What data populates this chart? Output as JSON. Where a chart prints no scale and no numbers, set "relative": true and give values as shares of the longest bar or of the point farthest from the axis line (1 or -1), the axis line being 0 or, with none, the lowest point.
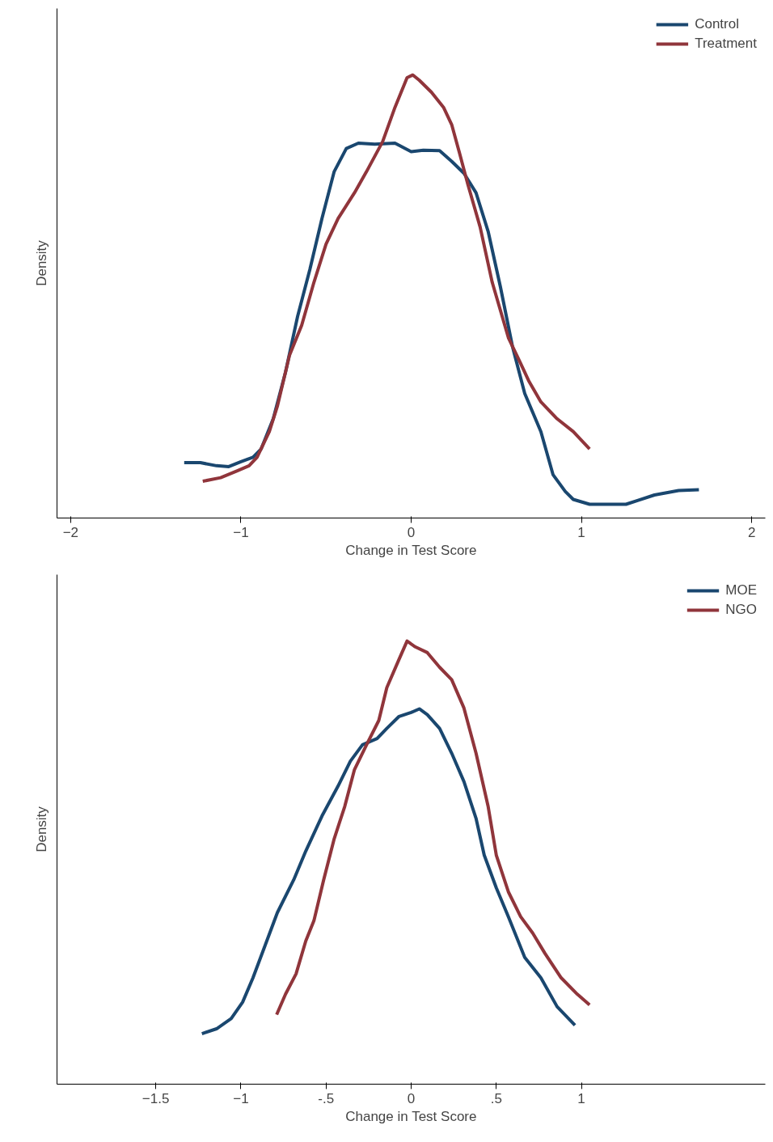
{
  "chart_data": [
    {
      "type": "line",
      "relative": true,
      "xlabel": "Change in Test Score",
      "ylabel": "Density",
      "xlim": [
        -2.08,
        2.08
      ],
      "xticks": [
        -2,
        -1,
        0,
        1,
        2
      ],
      "legend": "top right",
      "grid": false,
      "line_style": "solid",
      "series": [
        {
          "name": "Control",
          "color": "#1a476f",
          "x": [
            -1.333,
            -1.238,
            -1.143,
            -1.071,
            -1.0,
            -0.929,
            -0.881,
            -0.81,
            -0.738,
            -0.667,
            -0.595,
            -0.524,
            -0.452,
            -0.381,
            -0.31,
            -0.214,
            -0.095,
            0,
            0.071,
            0.167,
            0.238,
            0.31,
            0.381,
            0.452,
            0.524,
            0.595,
            0.667,
            0.762,
            0.833,
            0.905,
            0.952,
            1.048,
            1.262,
            1.333,
            1.429,
            1.571,
            1.69
          ],
          "values": [
            0.125,
            0.125,
            0.118,
            0.116,
            0.127,
            0.137,
            0.156,
            0.224,
            0.329,
            0.455,
            0.561,
            0.676,
            0.782,
            0.834,
            0.846,
            0.844,
            0.846,
            0.827,
            0.83,
            0.829,
            0.805,
            0.778,
            0.734,
            0.647,
            0.522,
            0.387,
            0.281,
            0.195,
            0.098,
            0.06,
            0.042,
            0.031,
            0.031,
            0.04,
            0.052,
            0.062,
            0.064
          ]
        },
        {
          "name": "Treatment",
          "color": "#90353b",
          "x": [
            -1.224,
            -1.119,
            -1.024,
            -0.952,
            -0.905,
            -0.833,
            -0.786,
            -0.714,
            -0.643,
            -0.571,
            -0.5,
            -0.429,
            -0.333,
            -0.262,
            -0.167,
            -0.095,
            -0.024,
            0.01,
            0.048,
            0.119,
            0.19,
            0.238,
            0.286,
            0.333,
            0.405,
            0.476,
            0.571,
            0.643,
            0.69,
            0.762,
            0.857,
            0.952,
            1.048
          ],
          "values": [
            0.083,
            0.091,
            0.106,
            0.118,
            0.137,
            0.195,
            0.252,
            0.368,
            0.435,
            0.532,
            0.618,
            0.676,
            0.734,
            0.782,
            0.85,
            0.927,
            0.994,
            1.0,
            0.988,
            0.961,
            0.927,
            0.888,
            0.821,
            0.753,
            0.657,
            0.532,
            0.407,
            0.349,
            0.31,
            0.262,
            0.224,
            0.195,
            0.156
          ]
        }
      ]
    },
    {
      "type": "line",
      "relative": true,
      "xlabel": "Change in Test Score",
      "ylabel": "Density",
      "xlim": [
        -2.08,
        2.08
      ],
      "xticks": [
        -1.5,
        -1,
        {
          "value": -0.5,
          "label": "-.5"
        },
        0,
        {
          "value": 0.5,
          "label": ".5"
        },
        1
      ],
      "legend": "top right",
      "grid": false,
      "line_style": "solid",
      "series": [
        {
          "name": "MOE",
          "color": "#1a476f",
          "x": [
            -1.229,
            -1.143,
            -1.057,
            -0.99,
            -0.929,
            -0.857,
            -0.786,
            -0.69,
            -0.619,
            -0.524,
            -0.429,
            -0.357,
            -0.286,
            -0.2,
            -0.143,
            -0.071,
            0,
            0.048,
            0.095,
            0.167,
            0.238,
            0.31,
            0.381,
            0.429,
            0.5,
            0.571,
            0.667,
            0.762,
            0.857,
            0.962
          ],
          "values": [
            0.114,
            0.125,
            0.148,
            0.185,
            0.24,
            0.314,
            0.387,
            0.461,
            0.526,
            0.605,
            0.673,
            0.729,
            0.766,
            0.78,
            0.803,
            0.83,
            0.839,
            0.847,
            0.834,
            0.803,
            0.747,
            0.683,
            0.6,
            0.517,
            0.443,
            0.378,
            0.286,
            0.24,
            0.175,
            0.133
          ]
        },
        {
          "name": "NGO",
          "color": "#90353b",
          "x": [
            -0.79,
            -0.738,
            -0.676,
            -0.619,
            -0.571,
            -0.514,
            -0.452,
            -0.39,
            -0.333,
            -0.262,
            -0.19,
            -0.143,
            -0.071,
            -0.024,
            0.024,
            0.095,
            0.167,
            0.238,
            0.31,
            0.381,
            0.452,
            0.5,
            0.571,
            0.643,
            0.714,
            0.786,
            0.881,
            0.976,
            1.048
          ],
          "values": [
            0.157,
            0.203,
            0.249,
            0.323,
            0.369,
            0.461,
            0.554,
            0.627,
            0.71,
            0.766,
            0.821,
            0.895,
            0.959,
            1.0,
            0.987,
            0.974,
            0.941,
            0.913,
            0.849,
            0.747,
            0.627,
            0.517,
            0.434,
            0.378,
            0.341,
            0.295,
            0.24,
            0.203,
            0.179
          ]
        }
      ]
    }
  ]
}
